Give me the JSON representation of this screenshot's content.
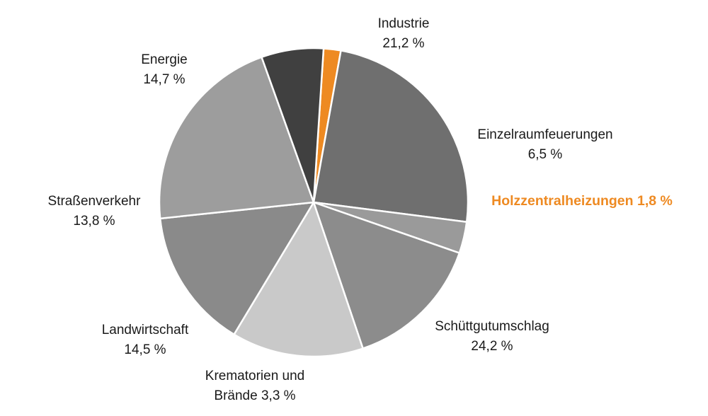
{
  "chart_data": {
    "type": "pie",
    "title": "",
    "start_angle_deg": -86.3,
    "direction": "clockwise",
    "slices": [
      {
        "key": "holzzentralheizungen",
        "label_lines": [
          "Holzzentralheizungen 1,8 %"
        ],
        "value": 1.8,
        "color": "#ee8a22",
        "highlight": true
      },
      {
        "key": "schuettgutumschlag",
        "label_lines": [
          "Schüttgutumschlag",
          "24,2 %"
        ],
        "value": 24.2,
        "color": "#6f6f6f"
      },
      {
        "key": "krematorien",
        "label_lines": [
          "Krematorien und",
          "Brände 3,3 %"
        ],
        "value": 3.3,
        "color": "#9a9a9a"
      },
      {
        "key": "landwirtschaft",
        "label_lines": [
          "Landwirtschaft",
          "14,5 %"
        ],
        "value": 14.5,
        "color": "#8c8c8c"
      },
      {
        "key": "strassenverkehr",
        "label_lines": [
          "Straßenverkehr",
          "13,8 %"
        ],
        "value": 13.8,
        "color": "#c9c9c9"
      },
      {
        "key": "energie",
        "label_lines": [
          "Energie",
          "14,7 %"
        ],
        "value": 14.7,
        "color": "#8a8a8a"
      },
      {
        "key": "industrie",
        "label_lines": [
          "Industrie",
          "21,2 %"
        ],
        "value": 21.2,
        "color": "#9d9d9d"
      },
      {
        "key": "einzelraumfeuerungen",
        "label_lines": [
          "Einzelraumfeuerungen",
          "6,5 %"
        ],
        "value": 6.5,
        "color": "#404040"
      }
    ]
  }
}
